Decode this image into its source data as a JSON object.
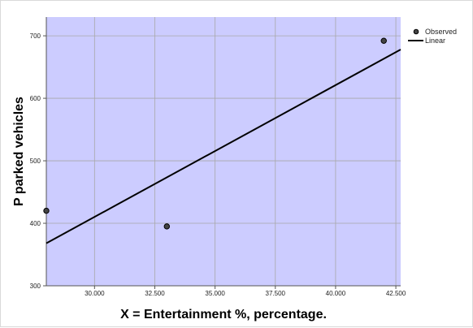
{
  "chart_data": {
    "type": "scatter",
    "title": "",
    "xlabel": "X =  Entertainment %, percentage.",
    "ylabel": "P parked vehicles",
    "xlim": [
      28.0,
      42.7
    ],
    "ylim": [
      300,
      730
    ],
    "x_ticks": [
      30.0,
      32.5,
      35.0,
      37.5,
      40.0,
      42.5
    ],
    "x_tick_labels": [
      "30.000",
      "32.500",
      "35.000",
      "37.500",
      "40.000",
      "42.500"
    ],
    "y_ticks": [
      300,
      400,
      500,
      600,
      700
    ],
    "y_tick_labels": [
      "300",
      "400",
      "500",
      "600",
      "700"
    ],
    "grid": true,
    "plot_background": "#ccccff",
    "series": [
      {
        "name": "Observed",
        "kind": "points",
        "x": [
          28.0,
          33.0,
          42.0
        ],
        "y": [
          420,
          395,
          692
        ]
      },
      {
        "name": "Linear",
        "kind": "line",
        "x": [
          28.0,
          42.7
        ],
        "y": [
          368,
          678
        ]
      }
    ],
    "legend": {
      "placement": "top-right",
      "entries": [
        "Observed",
        "Linear"
      ]
    }
  }
}
